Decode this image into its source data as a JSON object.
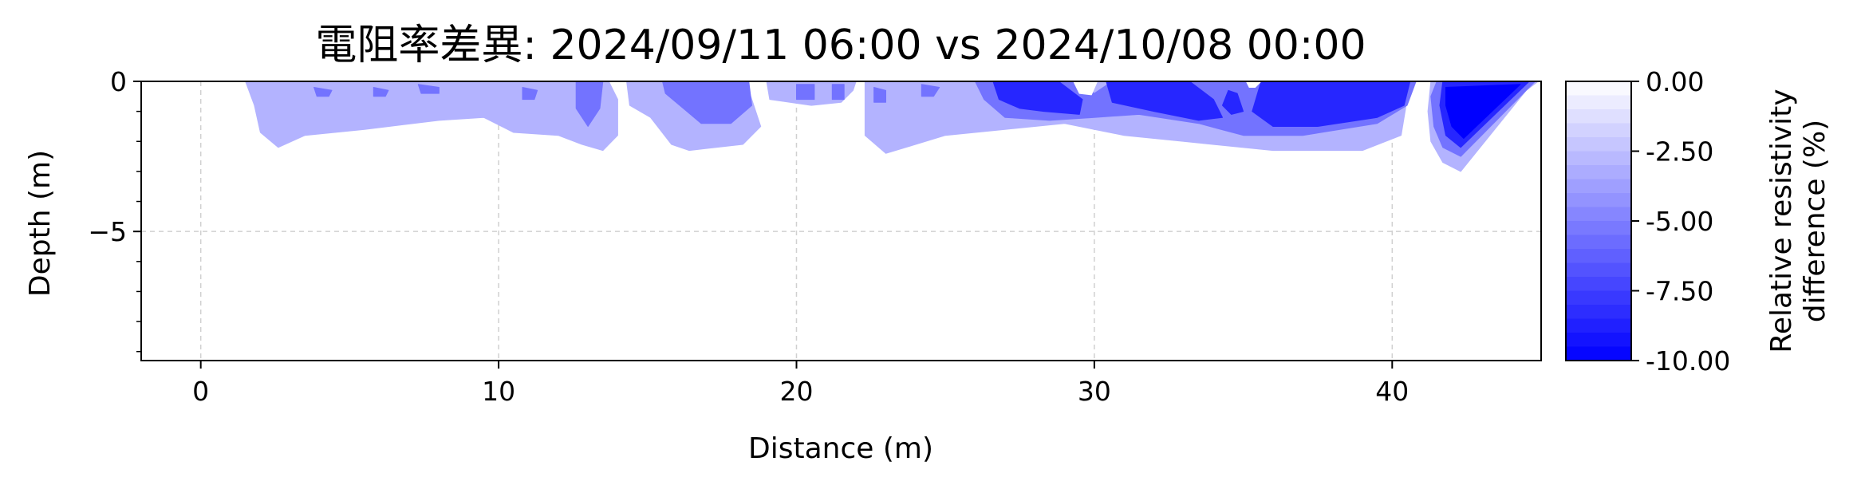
{
  "chart_data": {
    "type": "heatmap",
    "subtype": "filled-contour",
    "title": "電阻率差異: 2024/09/11 06:00 vs 2024/10/08 00:00",
    "xlabel": "Distance (m)",
    "ylabel": "Depth (m)",
    "xlim": [
      -2,
      45
    ],
    "ylim": [
      -9.3,
      0
    ],
    "xticks": [
      0,
      10,
      20,
      30,
      40
    ],
    "yticks": [
      0,
      -5
    ],
    "grid": true,
    "colorbar": {
      "label_line1": "Relative resistivity",
      "label_line2": "difference (%)",
      "range": [
        -10,
        0
      ],
      "ticks": [
        "0.00",
        "-2.50",
        "-5.00",
        "-7.50",
        "-10.00"
      ],
      "tick_values": [
        0,
        -2.5,
        -5,
        -7.5,
        -10
      ],
      "color_min": "#0000ff",
      "color_max": "#ffffff",
      "levels": 20
    },
    "regions": [
      {
        "level": -3,
        "points": [
          [
            1.5,
            0
          ],
          [
            1.8,
            -0.8
          ],
          [
            2,
            -1.7
          ],
          [
            2.6,
            -2.2
          ],
          [
            3.5,
            -1.8
          ],
          [
            5.5,
            -1.6
          ],
          [
            8,
            -1.3
          ],
          [
            9.5,
            -1.2
          ],
          [
            10.5,
            -1.7
          ],
          [
            12,
            -1.8
          ],
          [
            12.8,
            -2.1
          ],
          [
            13.5,
            -2.3
          ],
          [
            14,
            -1.8
          ],
          [
            14,
            -0.6
          ],
          [
            13.7,
            0
          ]
        ]
      },
      {
        "level": -3,
        "points": [
          [
            14.3,
            0
          ],
          [
            14.4,
            -0.8
          ],
          [
            15.1,
            -1.2
          ],
          [
            15.8,
            -2.1
          ],
          [
            16.4,
            -2.3
          ],
          [
            18.2,
            -2.1
          ],
          [
            18.8,
            -1.5
          ],
          [
            18.5,
            -0.6
          ],
          [
            18.3,
            0
          ]
        ]
      },
      {
        "level": -3,
        "points": [
          [
            19,
            0
          ],
          [
            19.1,
            -0.6
          ],
          [
            20.5,
            -0.8
          ],
          [
            21.5,
            -0.7
          ],
          [
            21.9,
            -0.3
          ],
          [
            22,
            0
          ]
        ]
      },
      {
        "level": -3,
        "points": [
          [
            22.3,
            0
          ],
          [
            22.3,
            -1.8
          ],
          [
            23,
            -2.4
          ],
          [
            24,
            -2.1
          ],
          [
            25,
            -1.8
          ],
          [
            27,
            -1.6
          ],
          [
            29,
            -1.4
          ],
          [
            31,
            -1.8
          ],
          [
            33,
            -2
          ],
          [
            36,
            -2.3
          ],
          [
            39,
            -2.3
          ],
          [
            40.3,
            -1.8
          ],
          [
            40.5,
            -0.6
          ],
          [
            40.8,
            0
          ]
        ]
      },
      {
        "level": -3,
        "points": [
          [
            41.3,
            0
          ],
          [
            41.2,
            -1
          ],
          [
            41.3,
            -2
          ],
          [
            41.7,
            -2.7
          ],
          [
            42.3,
            -3
          ],
          [
            44.5,
            -0.3
          ],
          [
            44.9,
            0
          ]
        ]
      },
      {
        "level": -5.5,
        "points": [
          [
            3.8,
            -0.2
          ],
          [
            4.4,
            -0.3
          ],
          [
            4.3,
            -0.5
          ],
          [
            3.9,
            -0.5
          ]
        ]
      },
      {
        "level": -5.5,
        "points": [
          [
            5.8,
            -0.2
          ],
          [
            6.3,
            -0.3
          ],
          [
            6.2,
            -0.5
          ],
          [
            5.8,
            -0.5
          ]
        ]
      },
      {
        "level": -5.5,
        "points": [
          [
            7.3,
            -0.1
          ],
          [
            8,
            -0.2
          ],
          [
            8,
            -0.4
          ],
          [
            7.4,
            -0.4
          ]
        ]
      },
      {
        "level": -5.5,
        "points": [
          [
            10.8,
            -0.2
          ],
          [
            11.3,
            -0.3
          ],
          [
            11.2,
            -0.6
          ],
          [
            10.8,
            -0.6
          ]
        ]
      },
      {
        "level": -5.5,
        "points": [
          [
            12.6,
            0
          ],
          [
            13.5,
            0
          ],
          [
            13.4,
            -0.9
          ],
          [
            13,
            -1.5
          ],
          [
            12.6,
            -0.9
          ]
        ]
      },
      {
        "level": -5.5,
        "points": [
          [
            15.5,
            0
          ],
          [
            18.4,
            0
          ],
          [
            18.5,
            -0.8
          ],
          [
            17.8,
            -1.4
          ],
          [
            16.8,
            -1.4
          ],
          [
            16.2,
            -0.9
          ],
          [
            15.6,
            -0.4
          ]
        ]
      },
      {
        "level": -5.5,
        "points": [
          [
            20,
            -0.1
          ],
          [
            20.6,
            -0.1
          ],
          [
            20.6,
            -0.6
          ],
          [
            20,
            -0.6
          ]
        ]
      },
      {
        "level": -5.5,
        "points": [
          [
            21.2,
            -0.1
          ],
          [
            21.6,
            -0.1
          ],
          [
            21.6,
            -0.6
          ],
          [
            21.2,
            -0.6
          ]
        ]
      },
      {
        "level": -5.5,
        "points": [
          [
            22.6,
            -0.2
          ],
          [
            23,
            -0.3
          ],
          [
            23,
            -0.7
          ],
          [
            22.6,
            -0.7
          ]
        ]
      },
      {
        "level": -5.5,
        "points": [
          [
            24.2,
            -0.1
          ],
          [
            24.8,
            -0.2
          ],
          [
            24.6,
            -0.5
          ],
          [
            24.2,
            -0.5
          ]
        ]
      },
      {
        "level": -5.5,
        "points": [
          [
            26,
            0
          ],
          [
            29.3,
            0
          ],
          [
            30,
            -0.4
          ],
          [
            30.6,
            0
          ],
          [
            40.8,
            0
          ],
          [
            40.5,
            -0.8
          ],
          [
            39.5,
            -1.4
          ],
          [
            37,
            -1.8
          ],
          [
            35,
            -1.8
          ],
          [
            33.5,
            -1.4
          ],
          [
            31.5,
            -1.1
          ],
          [
            30,
            -1.2
          ],
          [
            28.5,
            -1.3
          ],
          [
            27,
            -1.2
          ],
          [
            26.3,
            -0.6
          ]
        ]
      },
      {
        "level": -5.5,
        "points": [
          [
            41.5,
            0
          ],
          [
            44.8,
            0
          ],
          [
            42.3,
            -2.5
          ],
          [
            41.7,
            -2.2
          ],
          [
            41.4,
            -1.5
          ],
          [
            41.3,
            -0.5
          ]
        ]
      },
      {
        "level": -8.5,
        "points": [
          [
            26.6,
            0
          ],
          [
            28.8,
            0
          ],
          [
            29.6,
            -0.6
          ],
          [
            29.5,
            -1.1
          ],
          [
            28.3,
            -1
          ],
          [
            27.5,
            -0.9
          ],
          [
            26.8,
            -0.6
          ]
        ]
      },
      {
        "level": -8.5,
        "points": [
          [
            30.4,
            0
          ],
          [
            33.2,
            0
          ],
          [
            34,
            -0.6
          ],
          [
            34.3,
            -1.2
          ],
          [
            33.5,
            -1.3
          ],
          [
            32,
            -1
          ],
          [
            30.6,
            -0.7
          ]
        ]
      },
      {
        "level": -8.5,
        "points": [
          [
            34.5,
            -0.3
          ],
          [
            34.8,
            -0.4
          ],
          [
            35,
            -1
          ],
          [
            34.6,
            -1.1
          ],
          [
            34.3,
            -0.8
          ]
        ]
      },
      {
        "level": -8.5,
        "points": [
          [
            35.6,
            0
          ],
          [
            40.6,
            0
          ],
          [
            40.4,
            -0.8
          ],
          [
            39.5,
            -1.2
          ],
          [
            37.5,
            -1.5
          ],
          [
            36,
            -1.5
          ],
          [
            35.3,
            -1
          ]
        ]
      },
      {
        "level": -8.5,
        "points": [
          [
            41.7,
            0
          ],
          [
            44.6,
            0
          ],
          [
            42.3,
            -2.2
          ],
          [
            41.8,
            -1.8
          ],
          [
            41.6,
            -0.8
          ]
        ]
      },
      {
        "level": -10,
        "points": [
          [
            41.8,
            -0.2
          ],
          [
            44.3,
            -0.1
          ],
          [
            42.4,
            -1.9
          ],
          [
            42,
            -1.5
          ],
          [
            41.8,
            -0.8
          ]
        ]
      },
      {
        "level": 0,
        "points": [
          [
            29.3,
            0
          ],
          [
            30.1,
            0
          ],
          [
            29.9,
            -0.45
          ],
          [
            29.5,
            -0.4
          ]
        ]
      },
      {
        "level": 0,
        "points": [
          [
            35.1,
            0
          ],
          [
            35.6,
            0
          ],
          [
            35.4,
            -0.2
          ],
          [
            35.2,
            -0.2
          ]
        ]
      }
    ]
  }
}
